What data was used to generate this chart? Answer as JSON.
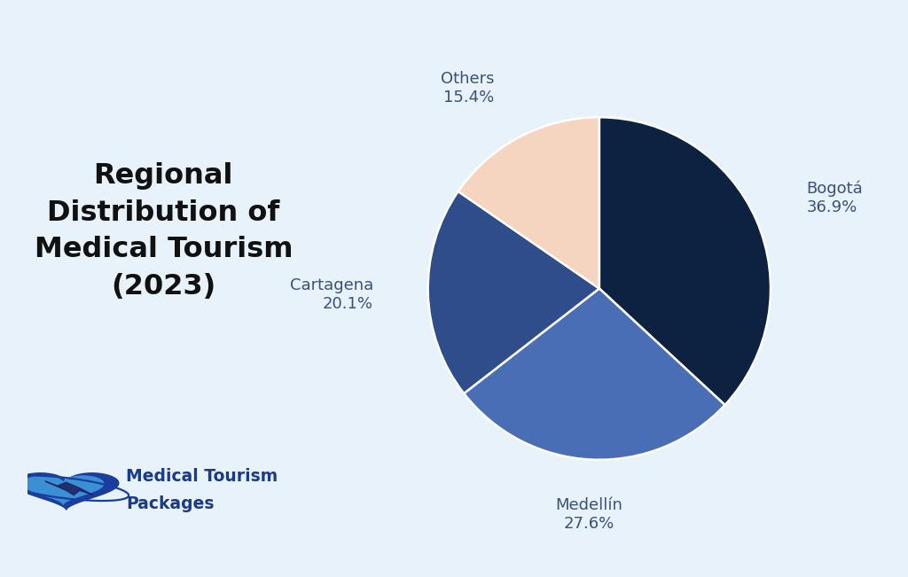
{
  "labels": [
    "Bogotá",
    "Medellín",
    "Cartagena",
    "Others"
  ],
  "values": [
    36.9,
    27.6,
    20.1,
    15.4
  ],
  "colors": [
    "#0d2240",
    "#4a6eb5",
    "#2e4d8a",
    "#f5d5c0"
  ],
  "title": "Regional\nDistribution of\nMedical Tourism\n(2023)",
  "background_color": "#e8f2fa",
  "label_color": "#3a5080",
  "title_color": "#111111",
  "title_fontsize": 23,
  "label_fontsize": 13,
  "startangle": 90,
  "logo_text_color": "#1a3a8a",
  "logo_text": [
    "Medical Tourism",
    "Packages"
  ]
}
